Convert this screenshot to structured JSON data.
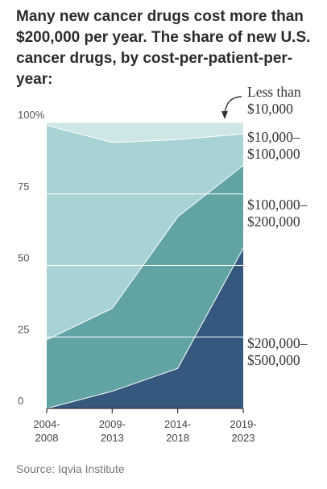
{
  "title_lines": [
    "Many new cancer drugs cost more than",
    "$200,000 per year. The share of new U.S.",
    "cancer drugs, by cost-per-patient-per-year:"
  ],
  "source": "Source: Iqvia Institute",
  "chart_data": {
    "type": "area",
    "stacked": true,
    "x": [
      "2004-2008",
      "2009-2013",
      "2014-2018",
      "2019-2023"
    ],
    "x_tick_labels": [
      [
        "2004-",
        "2008"
      ],
      [
        "2009-",
        "2013"
      ],
      [
        "2014-",
        "2018"
      ],
      [
        "2019-",
        "2023"
      ]
    ],
    "y_ticks": [
      0,
      25,
      50,
      75,
      100
    ],
    "y_tick_labels": [
      "0",
      "25",
      "50",
      "75",
      "100%"
    ],
    "ylim": [
      0,
      100
    ],
    "grid": true,
    "series": [
      {
        "name": "$200,000–$500,000",
        "label_lines": [
          "$200,000–",
          "$500,000"
        ],
        "color": "#34587e",
        "values": [
          0,
          6,
          14,
          56
        ]
      },
      {
        "name": "$100,000–$200,000",
        "label_lines": [
          "$100,000–",
          "$200,000"
        ],
        "color": "#62a3a4",
        "values": [
          24,
          29,
          53,
          29
        ]
      },
      {
        "name": "$10,000–$100,000",
        "label_lines": [
          "$10,000–",
          "$100,000"
        ],
        "color": "#a8d3d4",
        "values": [
          75,
          58,
          27,
          11
        ]
      },
      {
        "name": "Less than $10,000",
        "label_lines": [
          "Less than",
          "$10,000"
        ],
        "color": "#cfe6e7",
        "values": [
          1,
          7,
          6,
          4
        ]
      }
    ]
  }
}
